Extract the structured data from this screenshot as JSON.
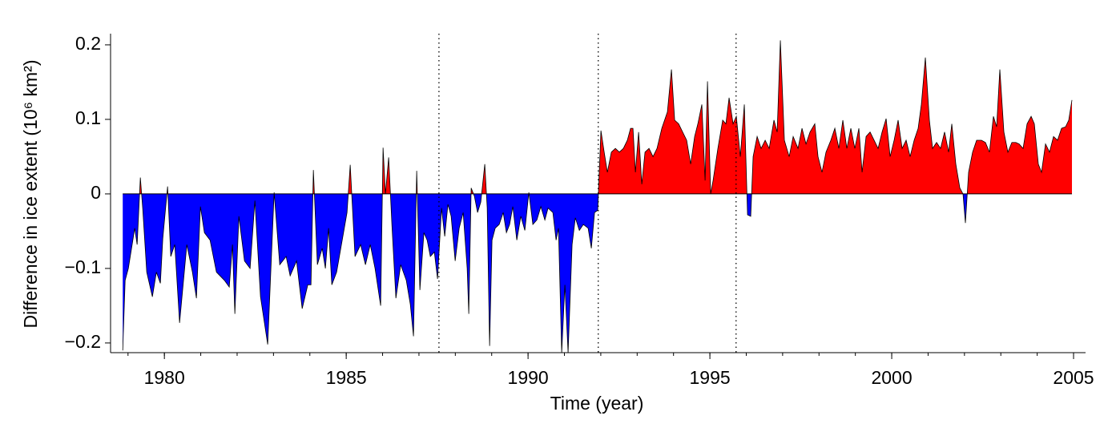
{
  "chart_data": {
    "type": "area",
    "xlabel": "Time (year)",
    "ylabel": "Difference in ice extent (10⁶ km²)",
    "x": [
      1978.855,
      1978.921,
      1979.009,
      1979.185,
      1979.251,
      1979.339,
      1979.405,
      1979.515,
      1979.67,
      1979.78,
      1979.89,
      1979.956,
      1980.088,
      1980.176,
      1980.286,
      1980.418,
      1980.617,
      1980.771,
      1980.881,
      1980.991,
      1981.101,
      1981.256,
      1981.432,
      1981.652,
      1981.784,
      1981.872,
      1981.938,
      1982.048,
      1982.203,
      1982.357,
      1982.489,
      1982.643,
      1982.841,
      1983.018,
      1983.172,
      1983.348,
      1983.458,
      1983.634,
      1983.789,
      1983.943,
      1984.031,
      1984.097,
      1984.207,
      1984.339,
      1984.427,
      1984.515,
      1984.604,
      1984.736,
      1984.89,
      1985.022,
      1985.11,
      1985.242,
      1985.396,
      1985.529,
      1985.661,
      1985.793,
      1985.947,
      1986.013,
      1986.079,
      1986.167,
      1986.256,
      1986.366,
      1986.498,
      1986.652,
      1986.762,
      1986.85,
      1986.938,
      1987.026,
      1987.136,
      1987.225,
      1987.313,
      1987.423,
      1987.511,
      1987.621,
      1987.709,
      1987.797,
      1987.885,
      1987.996,
      1988.106,
      1988.216,
      1988.326,
      1988.37,
      1988.436,
      1988.524,
      1988.612,
      1988.7,
      1988.81,
      1988.877,
      1988.943,
      1989.009,
      1989.097,
      1989.207,
      1989.317,
      1989.405,
      1989.493,
      1989.581,
      1989.691,
      1989.802,
      1989.912,
      1990.022,
      1990.132,
      1990.242,
      1990.352,
      1990.462,
      1990.55,
      1990.683,
      1990.771,
      1990.837,
      1990.925,
      1991.013,
      1991.101,
      1991.211,
      1991.3,
      1991.41,
      1991.52,
      1991.652,
      1991.74,
      1991.828,
      1991.916,
      1992.004,
      1992.093,
      1992.181,
      1992.291,
      1992.401,
      1992.511,
      1992.621,
      1992.731,
      1992.819,
      1992.885,
      1992.952,
      1993.04,
      1993.128,
      1993.216,
      1993.326,
      1993.436,
      1993.546,
      1993.678,
      1993.832,
      1993.943,
      1994.031,
      1994.141,
      1994.251,
      1994.361,
      1994.471,
      1994.581,
      1994.669,
      1994.779,
      1994.868,
      1994.934,
      1995.022,
      1995.088,
      1995.22,
      1995.352,
      1995.44,
      1995.528,
      1995.638,
      1995.727,
      1995.837,
      1995.947,
      1996.035,
      1996.123,
      1996.189,
      1996.299,
      1996.409,
      1996.52,
      1996.63,
      1996.762,
      1996.85,
      1996.938,
      1997.048,
      1997.18,
      1997.29,
      1997.423,
      1997.533,
      1997.643,
      1997.753,
      1997.885,
      1997.973,
      1998.083,
      1998.193,
      1998.326,
      1998.436,
      1998.546,
      1998.656,
      1998.766,
      1998.876,
      1998.986,
      1999.097,
      1999.185,
      1999.295,
      1999.405,
      1999.515,
      1999.625,
      1999.735,
      1999.846,
      1999.956,
      2000.066,
      2000.176,
      2000.286,
      2000.396,
      2000.506,
      2000.617,
      2000.727,
      2000.815,
      2000.925,
      2001.035,
      2001.123,
      2001.233,
      2001.343,
      2001.453,
      2001.564,
      2001.652,
      2001.762,
      2001.872,
      2001.96,
      2002.026,
      2002.114,
      2002.224,
      2002.334,
      2002.467,
      2002.577,
      2002.687,
      2002.797,
      2002.885,
      2002.973,
      2003.084,
      2003.194,
      2003.304,
      2003.414,
      2003.502,
      2003.612,
      2003.722,
      2003.833,
      2003.921,
      2004.031,
      2004.119,
      2004.229,
      2004.339,
      2004.449,
      2004.559,
      2004.67,
      2004.78,
      2004.868,
      2004.956
    ],
    "values": [
      -0.21,
      -0.116,
      -0.1,
      -0.046,
      -0.068,
      0.022,
      -0.02,
      -0.105,
      -0.138,
      -0.105,
      -0.12,
      -0.06,
      0.01,
      -0.084,
      -0.068,
      -0.173,
      -0.068,
      -0.105,
      -0.14,
      -0.017,
      -0.052,
      -0.062,
      -0.105,
      -0.116,
      -0.125,
      -0.068,
      -0.161,
      -0.03,
      -0.09,
      -0.1,
      -0.009,
      -0.138,
      -0.202,
      0.002,
      -0.095,
      -0.084,
      -0.11,
      -0.09,
      -0.154,
      -0.122,
      -0.122,
      0.032,
      -0.095,
      -0.073,
      -0.1,
      -0.046,
      -0.122,
      -0.105,
      -0.062,
      -0.025,
      0.039,
      -0.084,
      -0.068,
      -0.095,
      -0.068,
      -0.1,
      -0.15,
      0.062,
      0,
      0.049,
      -0.041,
      -0.14,
      -0.095,
      -0.116,
      -0.148,
      -0.191,
      0.031,
      -0.129,
      -0.052,
      -0.062,
      -0.084,
      -0.078,
      -0.114,
      -0.019,
      -0.057,
      -0.014,
      -0.03,
      -0.09,
      -0.046,
      -0.025,
      -0.1,
      -0.161,
      0.008,
      -0.003,
      -0.025,
      -0.011,
      0.04,
      -0.019,
      -0.204,
      -0.062,
      -0.046,
      -0.041,
      -0.025,
      -0.052,
      -0.041,
      -0.017,
      -0.062,
      -0.03,
      -0.049,
      0.002,
      -0.041,
      -0.035,
      -0.017,
      -0.035,
      -0.019,
      -0.025,
      -0.062,
      -0.046,
      -0.213,
      -0.122,
      -0.213,
      -0.068,
      -0.032,
      -0.049,
      -0.041,
      -0.046,
      -0.073,
      -0.025,
      -0.022,
      0.085,
      0.056,
      0.029,
      0.056,
      0.061,
      0.056,
      0.061,
      0.072,
      0.088,
      0.088,
      0.029,
      0.083,
      0.013,
      0.056,
      0.061,
      0.05,
      0.061,
      0.088,
      0.11,
      0.167,
      0.099,
      0.094,
      0.083,
      0.072,
      0.04,
      0.077,
      0.094,
      0.12,
      0.018,
      0.151,
      0,
      0.018,
      0.061,
      0.099,
      0.094,
      0.129,
      0.094,
      0.104,
      0.05,
      0.12,
      -0.028,
      -0.03,
      0.05,
      0.077,
      0.061,
      0.072,
      0.061,
      0.099,
      0.083,
      0.206,
      0.072,
      0.05,
      0.077,
      0.061,
      0.088,
      0.067,
      0.083,
      0.094,
      0.05,
      0.029,
      0.056,
      0.072,
      0.088,
      0.061,
      0.099,
      0.061,
      0.088,
      0.061,
      0.088,
      0.029,
      0.077,
      0.083,
      0.072,
      0.061,
      0.083,
      0.101,
      0.05,
      0.072,
      0.099,
      0.061,
      0.072,
      0.05,
      0.072,
      0.088,
      0.12,
      0.183,
      0.099,
      0.061,
      0.069,
      0.061,
      0.083,
      0.056,
      0.094,
      0.04,
      0.008,
      0,
      -0.039,
      0.029,
      0.056,
      0.072,
      0.072,
      0.069,
      0.056,
      0.104,
      0.09,
      0.167,
      0.083,
      0.056,
      0.069,
      0.069,
      0.067,
      0.061,
      0.094,
      0.104,
      0.094,
      0.04,
      0.029,
      0.067,
      0.056,
      0.077,
      0.072,
      0.088,
      0.09,
      0.099,
      0.126
    ],
    "colors": {
      "positive": "#ff0000",
      "negative": "#0000ff"
    },
    "xlim": [
      1978.52,
      2005.33
    ],
    "ylim": [
      -0.213,
      0.215
    ],
    "xticks": [
      1980,
      1985,
      1990,
      1995,
      2000,
      2005
    ],
    "xminorticks": [
      1979,
      1980,
      1981,
      1982,
      1983,
      1984,
      1985,
      1986,
      1987,
      1988,
      1989,
      1990,
      1991,
      1992,
      1993,
      1994,
      1995,
      1996,
      1997,
      1998,
      1999,
      2000,
      2001,
      2002,
      2003,
      2004,
      2005
    ],
    "yticks": [
      {
        "value": -0.2,
        "label": "−0.2"
      },
      {
        "value": -0.1,
        "label": "−0.1"
      },
      0,
      0.1,
      0.2
    ],
    "vlines": [
      1987.55,
      1991.93,
      1995.72
    ]
  }
}
